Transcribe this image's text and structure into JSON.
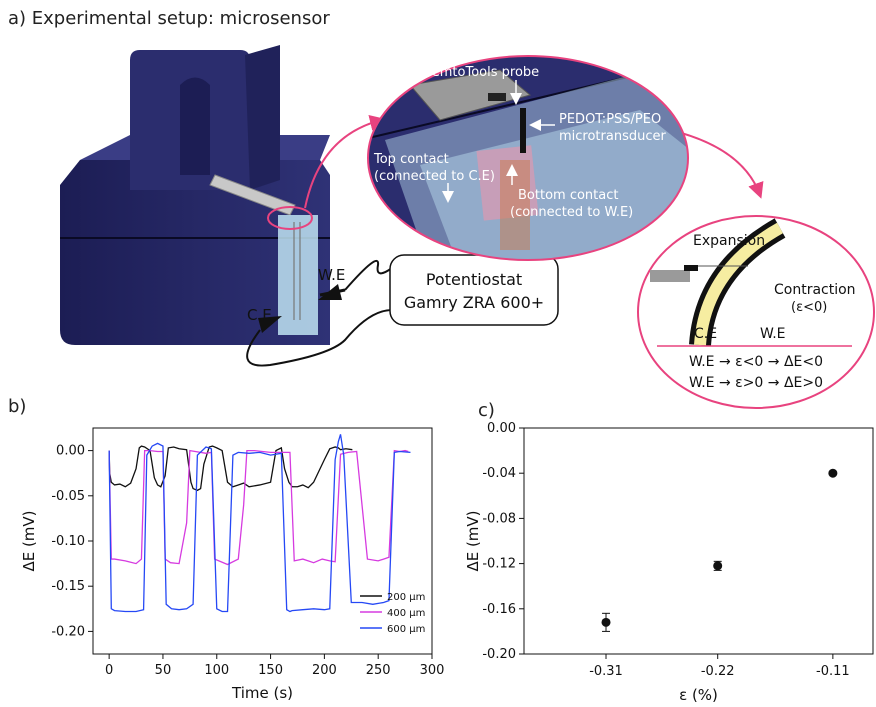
{
  "panel_a": {
    "heading": "a) Experimental setup: microsensor",
    "zoom_labels": {
      "probe": "FemtoTools probe",
      "transducer_line1": "PEDOT:PSS/PEO",
      "transducer_line2": "microtransducer",
      "top_contact_line1": "Top contact",
      "top_contact_line2": "(connected to C.E)",
      "bottom_contact_line1": "Bottom contact",
      "bottom_contact_line2": "(connected to W.E)"
    },
    "electrodes": {
      "we": "W.E",
      "ce": "C.E"
    },
    "potentiostat": {
      "line1": "Potentiostat",
      "line2": "Gamry ZRA 600+"
    },
    "scheme": {
      "expansion": "Expansion",
      "contraction_line1": "Contraction",
      "contraction_line2": "(ε<0)",
      "ce": "C.E",
      "we": "W.E",
      "rule1": "W.E → ε<0 → ΔE<0",
      "rule2": "W.E → ε>0 → ΔE>0"
    },
    "colors": {
      "device": "#2b2d6e",
      "accent": "#e8437f",
      "film": "#f6eda1",
      "substrate": "#bfe3f2"
    }
  },
  "panel_b_label": "b)",
  "panel_c_label": "c)",
  "chart_data": [
    {
      "type": "line",
      "panel": "b",
      "xlabel": "Time (s)",
      "ylabel": "ΔE (mV)",
      "xlim": [
        -15,
        300
      ],
      "ylim": [
        -0.225,
        0.025
      ],
      "xticks": [
        0,
        50,
        100,
        150,
        200,
        250,
        300
      ],
      "yticks": [
        0.0,
        -0.05,
        -0.1,
        -0.15,
        -0.2
      ],
      "ytick_labels": [
        "0.00",
        "-0.05",
        "-0.10",
        "-0.15",
        "-0.20"
      ],
      "legend_position": "bottom-right",
      "series": [
        {
          "name": "200 μm",
          "color": "#111111",
          "x": [
            0,
            0.5,
            2,
            5,
            10,
            15,
            20,
            25,
            28,
            30,
            33,
            38,
            42,
            45,
            48,
            52,
            55,
            60,
            65,
            72,
            76,
            78,
            82,
            85,
            88,
            93,
            96,
            100,
            105,
            110,
            115,
            120,
            125,
            130,
            140,
            150,
            155,
            160,
            163,
            167,
            170,
            175,
            180,
            185,
            190,
            200,
            205,
            210,
            213,
            215,
            220,
            226
          ],
          "y": [
            0.0,
            -0.025,
            -0.035,
            -0.038,
            -0.037,
            -0.04,
            -0.036,
            -0.02,
            0.003,
            0.005,
            0.004,
            0.0,
            -0.03,
            -0.038,
            -0.04,
            -0.028,
            0.003,
            0.004,
            0.002,
            0.001,
            -0.035,
            -0.042,
            -0.044,
            -0.042,
            -0.015,
            0.004,
            0.005,
            0.003,
            0.0,
            -0.035,
            -0.04,
            -0.038,
            -0.036,
            -0.04,
            -0.038,
            -0.035,
            0.0,
            0.003,
            -0.02,
            -0.035,
            -0.04,
            -0.04,
            -0.038,
            -0.041,
            -0.035,
            -0.01,
            0.002,
            0.004,
            0.003,
            0.001,
            0.002,
            0.001
          ]
        },
        {
          "name": "400 μm",
          "color": "#d63be0",
          "x": [
            0,
            2,
            5,
            15,
            25,
            30,
            33,
            38,
            45,
            50,
            52,
            57,
            65,
            72,
            75,
            80,
            90,
            95,
            98,
            102,
            110,
            120,
            125,
            128,
            135,
            150,
            162,
            168,
            172,
            180,
            185,
            190,
            198,
            205,
            210,
            215,
            222,
            230,
            240,
            250,
            255,
            260,
            265,
            270,
            275,
            278
          ],
          "y": [
            0.0,
            -0.12,
            -0.12,
            -0.122,
            -0.125,
            -0.12,
            0.0,
            0.0,
            -0.001,
            -0.001,
            -0.12,
            -0.124,
            -0.125,
            -0.08,
            0.0,
            -0.001,
            -0.003,
            -0.002,
            -0.12,
            -0.122,
            -0.126,
            -0.12,
            -0.06,
            0.0,
            0.0,
            -0.002,
            -0.002,
            -0.002,
            -0.122,
            -0.12,
            -0.122,
            -0.124,
            -0.12,
            -0.122,
            -0.123,
            -0.004,
            -0.002,
            -0.001,
            -0.12,
            -0.122,
            -0.12,
            -0.118,
            0.0,
            -0.001,
            0.0,
            -0.001
          ]
        },
        {
          "name": "600 μm",
          "color": "#2548f5",
          "x": [
            0,
            2,
            5,
            15,
            25,
            32,
            35,
            40,
            45,
            50,
            53,
            58,
            65,
            72,
            78,
            82,
            90,
            95,
            100,
            105,
            110,
            115,
            120,
            130,
            140,
            150,
            160,
            165,
            168,
            170,
            180,
            190,
            200,
            205,
            210,
            213,
            215,
            218,
            225,
            235,
            245,
            255,
            260,
            265,
            270,
            280
          ],
          "y": [
            0.0,
            -0.175,
            -0.177,
            -0.178,
            -0.178,
            -0.176,
            -0.005,
            0.005,
            0.008,
            0.005,
            -0.17,
            -0.175,
            -0.176,
            -0.175,
            -0.17,
            -0.005,
            0.004,
            0.002,
            -0.175,
            -0.178,
            -0.178,
            -0.005,
            -0.002,
            -0.003,
            -0.002,
            -0.005,
            -0.003,
            -0.176,
            -0.178,
            -0.177,
            -0.176,
            -0.175,
            -0.176,
            -0.175,
            -0.01,
            0.01,
            0.018,
            -0.005,
            -0.168,
            -0.168,
            -0.17,
            -0.168,
            -0.166,
            -0.002,
            -0.001,
            -0.002
          ]
        }
      ]
    },
    {
      "type": "scatter",
      "panel": "c",
      "xlabel": "ε (%)",
      "ylabel": "ΔE (mV)",
      "categories": [
        "-0.31",
        "-0.22",
        "-0.11"
      ],
      "values": [
        -0.172,
        -0.122,
        -0.04
      ],
      "errors": [
        0.008,
        0.004,
        0.0
      ],
      "ylim": [
        -0.2,
        0.0
      ],
      "yticks": [
        0.0,
        -0.04,
        -0.08,
        -0.12,
        -0.16,
        -0.2
      ],
      "ytick_labels": [
        "0.00",
        "-0.04",
        "-0.08",
        "-0.12",
        "-0.16",
        "-0.20"
      ],
      "color": "#111111"
    }
  ]
}
